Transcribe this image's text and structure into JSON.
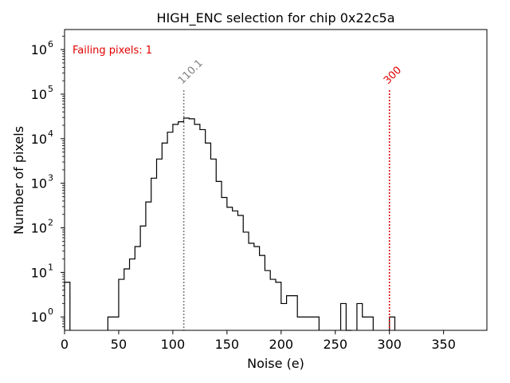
{
  "chart_data": {
    "type": "histogram",
    "title": "HIGH_ENC selection for chip 0x22c5a",
    "xlabel": "Noise (e)",
    "ylabel": "Number of pixels",
    "xlim": [
      0,
      390
    ],
    "ylim_log10": [
      -0.3,
      6.45
    ],
    "yscale": "log",
    "bin_width": 5,
    "xticks": [
      0,
      50,
      100,
      150,
      200,
      250,
      300,
      350
    ],
    "yticks": [
      {
        "base": "10",
        "exp": "0",
        "log": 0
      },
      {
        "base": "10",
        "exp": "1",
        "log": 1
      },
      {
        "base": "10",
        "exp": "2",
        "log": 2
      },
      {
        "base": "10",
        "exp": "3",
        "log": 3
      },
      {
        "base": "10",
        "exp": "4",
        "log": 4
      },
      {
        "base": "10",
        "exp": "5",
        "log": 5
      },
      {
        "base": "10",
        "exp": "6",
        "log": 6
      }
    ],
    "bins": [
      [
        0,
        5,
        6
      ],
      [
        40,
        50,
        1
      ],
      [
        50,
        55,
        7
      ],
      [
        55,
        60,
        12
      ],
      [
        60,
        65,
        20
      ],
      [
        65,
        70,
        38
      ],
      [
        70,
        75,
        110
      ],
      [
        75,
        80,
        380
      ],
      [
        80,
        85,
        1300
      ],
      [
        85,
        90,
        3500
      ],
      [
        90,
        95,
        8000
      ],
      [
        95,
        100,
        14000
      ],
      [
        100,
        105,
        21000
      ],
      [
        105,
        110,
        24000
      ],
      [
        110,
        115,
        29000
      ],
      [
        115,
        120,
        28000
      ],
      [
        120,
        125,
        21000
      ],
      [
        125,
        130,
        16000
      ],
      [
        130,
        135,
        8000
      ],
      [
        135,
        140,
        3500
      ],
      [
        140,
        145,
        1100
      ],
      [
        145,
        150,
        480
      ],
      [
        150,
        155,
        290
      ],
      [
        155,
        160,
        240
      ],
      [
        160,
        165,
        190
      ],
      [
        165,
        170,
        80
      ],
      [
        170,
        175,
        45
      ],
      [
        175,
        180,
        38
      ],
      [
        180,
        185,
        24
      ],
      [
        185,
        190,
        11
      ],
      [
        190,
        195,
        7
      ],
      [
        195,
        200,
        6
      ],
      [
        200,
        205,
        2
      ],
      [
        205,
        215,
        3
      ],
      [
        215,
        235,
        1
      ],
      [
        255,
        260,
        2
      ],
      [
        260,
        265,
        0.45
      ],
      [
        270,
        275,
        2
      ],
      [
        275,
        280,
        1
      ],
      [
        280,
        285,
        1
      ],
      [
        300,
        305,
        1
      ]
    ],
    "lines": [
      {
        "x": 110.1,
        "label": "110.1",
        "color": "#808080"
      },
      {
        "x": 300,
        "label": "300",
        "color": "#e00000"
      }
    ],
    "annotation": "Failing pixels: 1",
    "annotation_color": "#e00000"
  }
}
